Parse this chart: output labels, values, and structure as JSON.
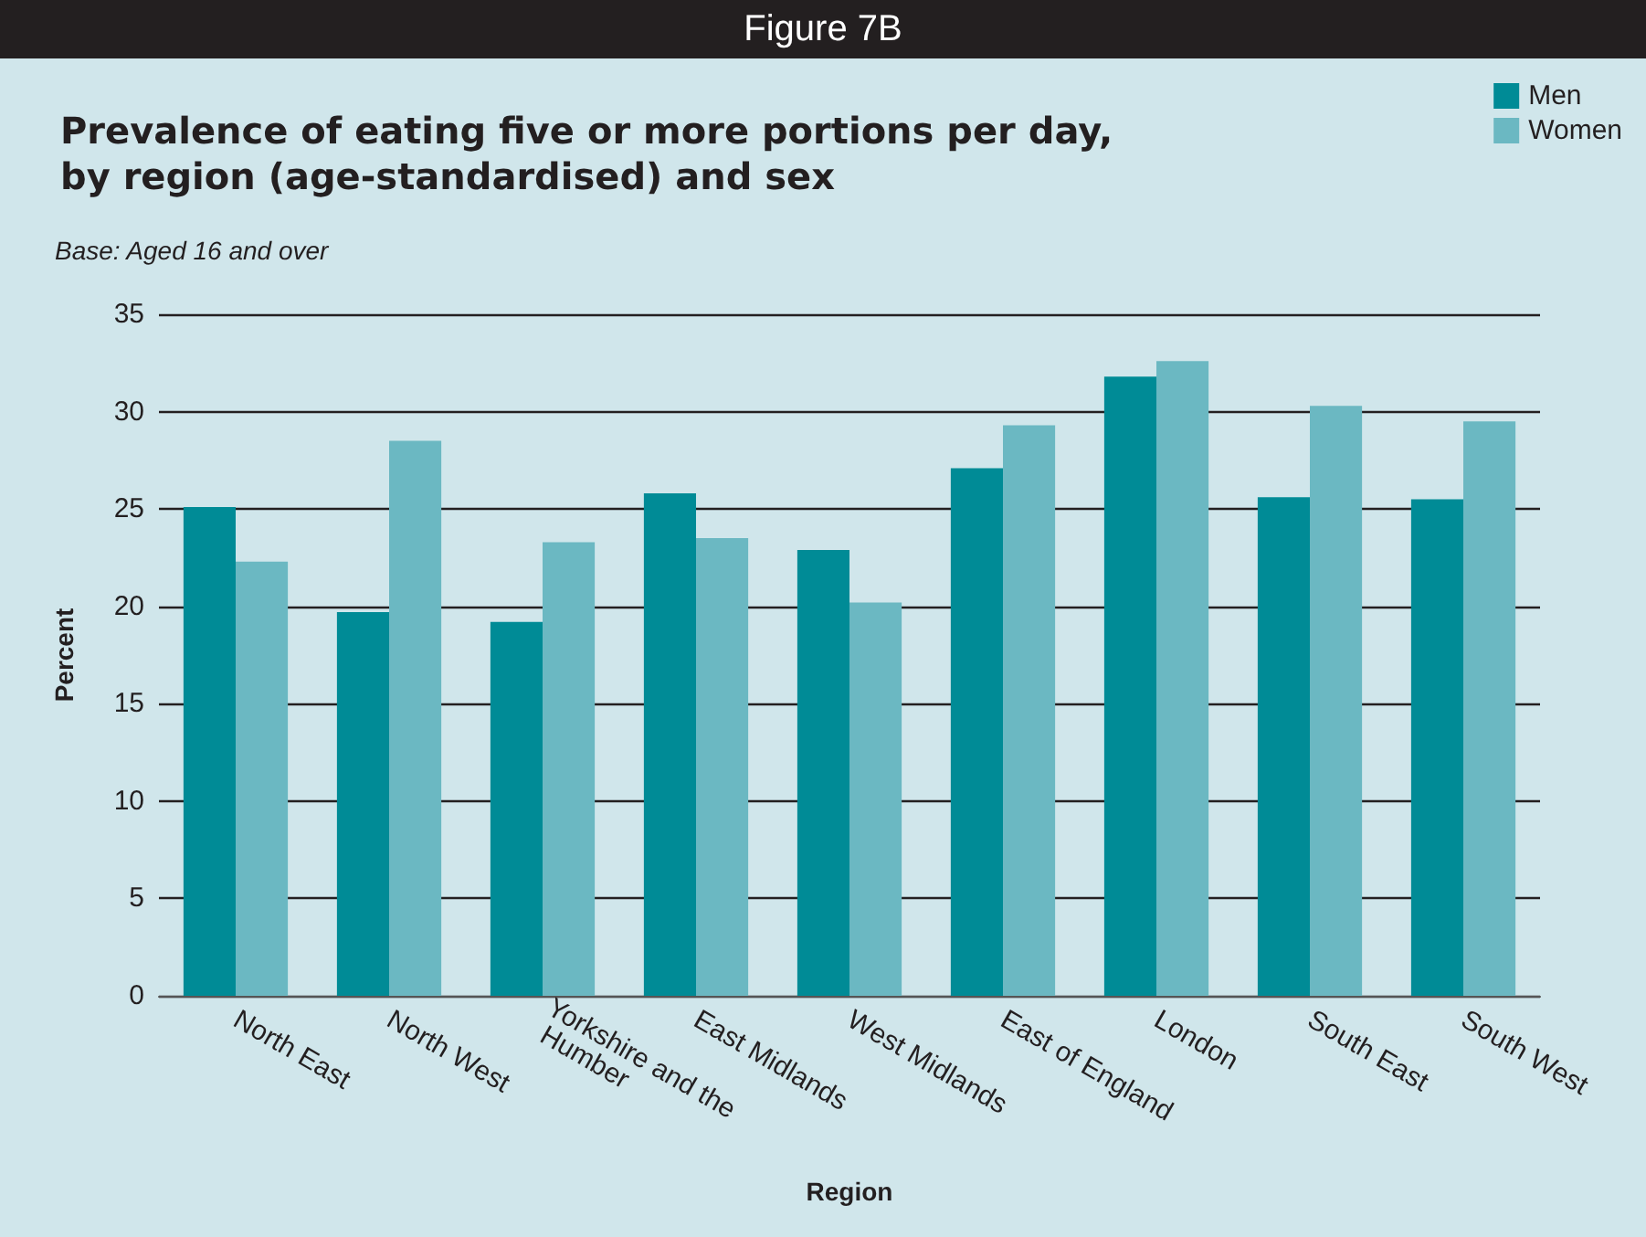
{
  "chart_data": {
    "type": "bar",
    "title": "Figure 7B",
    "subtitle": "Prevalence of eating five or more portions per day,\nby region (age-standardised) and sex",
    "annotations": [
      "Base: Aged 16 and over"
    ],
    "xlabel": "Region",
    "ylabel": "Percent",
    "categories": [
      "North East",
      "North West",
      "Yorkshire and the Humber",
      "East Midlands",
      "West Midlands",
      "East of England",
      "London",
      "South East",
      "South West"
    ],
    "series": [
      {
        "name": "Men",
        "color": "#008b96",
        "values": [
          25.1,
          19.7,
          19.2,
          25.8,
          22.9,
          27.1,
          31.8,
          25.6,
          25.5
        ]
      },
      {
        "name": "Women",
        "color": "#6bb8c2",
        "values": [
          22.3,
          28.5,
          23.3,
          23.5,
          20.2,
          29.3,
          32.6,
          30.3,
          29.5
        ]
      }
    ],
    "ylim": [
      0,
      35
    ],
    "yticks": [
      0,
      5,
      10,
      15,
      20,
      25,
      30,
      35
    ],
    "grid": "y",
    "legend": "top right"
  }
}
